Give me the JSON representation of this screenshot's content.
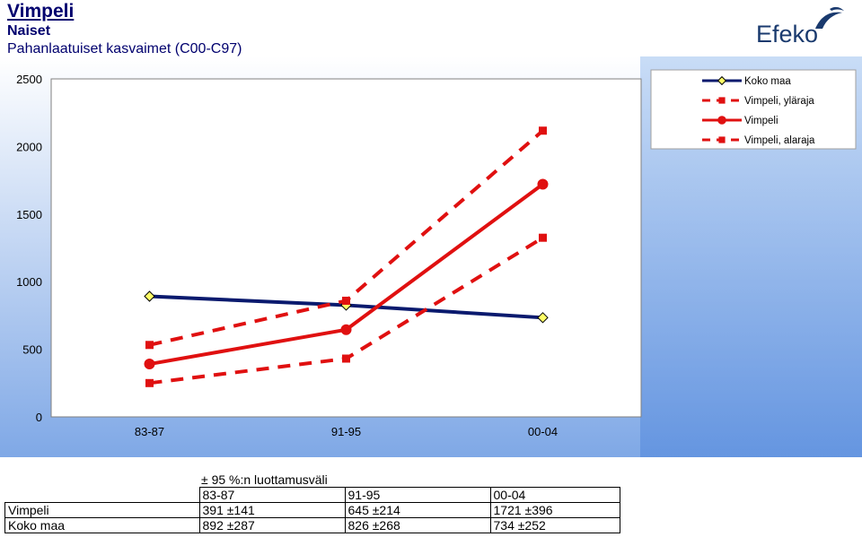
{
  "header": {
    "title": "Vimpeli",
    "subtitle": "Naiset",
    "subtitle2": "Pahanlaatuiset kasvaimet (C00-C97)"
  },
  "logo": {
    "text": "Efeko",
    "icon": "efeko-swoosh-logo",
    "color": "#1a3a6e"
  },
  "colors": {
    "plot_bg_top": "#ffffff",
    "plot_bg_bottom": "#7fa8e6",
    "koko_maa": "#0a1a6e",
    "vimpeli": "#e01010",
    "marker_yellow": "#ffff66"
  },
  "chart_data": {
    "type": "line",
    "categories": [
      "83-87",
      "91-95",
      "00-04"
    ],
    "ylim": [
      0,
      2500
    ],
    "yticks": [
      "0",
      "500",
      "1000",
      "1500",
      "2000",
      "2500"
    ],
    "grid": false,
    "legend_position": "top-right",
    "series": [
      {
        "name": "Koko maa",
        "values": [
          892,
          826,
          734
        ],
        "style": "solid",
        "marker": "diamond",
        "color": "#0a1a6e"
      },
      {
        "name": "Vimpeli, yläraja",
        "values": [
          532,
          859,
          2117
        ],
        "style": "dashed",
        "marker": "square",
        "color": "#e01010"
      },
      {
        "name": "Vimpeli",
        "values": [
          391,
          645,
          1721
        ],
        "style": "solid",
        "marker": "circle",
        "color": "#e01010"
      },
      {
        "name": "Vimpeli, alaraja",
        "values": [
          250,
          431,
          1325
        ],
        "style": "dashed",
        "marker": "square",
        "color": "#e01010"
      }
    ]
  },
  "table": {
    "caption": "± 95 %:n luottamusväli",
    "headers": [
      "83-87",
      "91-95",
      "00-04"
    ],
    "rows": [
      {
        "label": "Vimpeli",
        "cells": [
          "391 ±141",
          "645 ±214",
          "1721 ±396"
        ]
      },
      {
        "label": "Koko maa",
        "cells": [
          "892 ±287",
          "826 ±268",
          "734 ±252"
        ]
      }
    ]
  }
}
